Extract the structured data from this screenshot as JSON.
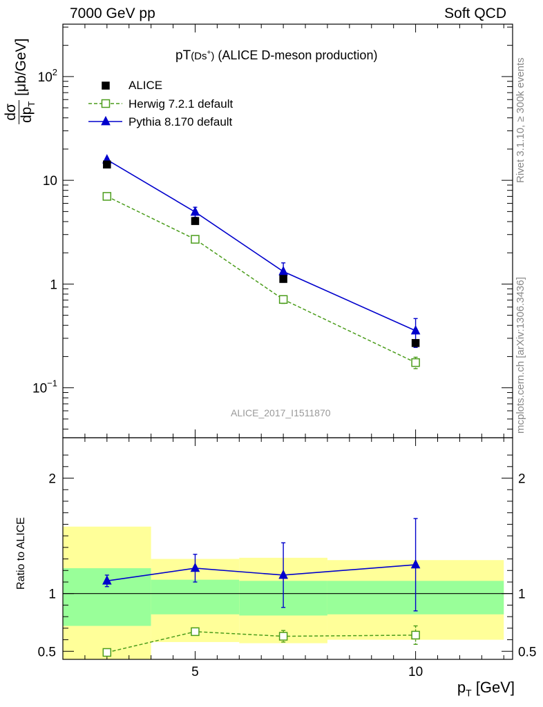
{
  "header": {
    "energy": "7000 GeV pp",
    "process": "Soft QCD"
  },
  "side_text": {
    "rivet": "Rivet 3.1.10, ≥ 300k events",
    "mcplots": "mcplots.cern.ch [arXiv:1306.3436]"
  },
  "plot_title": {
    "main": "pT",
    "species": "(Ds",
    "charge": "+",
    "close": ")",
    "rest": " (ALICE D-meson production)"
  },
  "analysis_id": "ALICE_2017_I1511870",
  "ylabel_top": {
    "num": "dσ",
    "den": "dp",
    "sub": "T",
    "unit": "[μb/GeV]"
  },
  "ylabel_ratio": "Ratio to ALICE",
  "xlabel": {
    "main": "p",
    "sub": "T",
    "unit": "[GeV]"
  },
  "legend": [
    {
      "name": "ALICE",
      "color": "#000000",
      "marker": "square-filled"
    },
    {
      "name": "Herwig 7.2.1 default",
      "color": "#4a9c1a",
      "marker": "square-open",
      "dashed": true
    },
    {
      "name": "Pythia 8.170 default",
      "color": "#0000cc",
      "marker": "triangle"
    }
  ],
  "colors": {
    "band_inner": "#99ff99",
    "band_outer": "#ffff99",
    "herwig": "#4a9c1a",
    "pythia": "#0000cc",
    "data": "#000000"
  },
  "chart_data": [
    {
      "type": "scatter",
      "panel": "main",
      "yscale": "log",
      "xlim": [
        2,
        12.2
      ],
      "ylim": [
        0.033,
        320
      ],
      "yticks": [
        {
          "v": 0.1,
          "label": "10",
          "exp": "−1"
        },
        {
          "v": 1,
          "label": "1",
          "exp": ""
        },
        {
          "v": 10,
          "label": "10",
          "exp": ""
        },
        {
          "v": 100,
          "label": "10",
          "exp": "2"
        }
      ],
      "series": [
        {
          "name": "ALICE",
          "x": [
            3,
            5,
            7,
            10
          ],
          "y": [
            14.2,
            4.05,
            1.12,
            0.27
          ],
          "yerr": [
            0.6,
            0.2,
            0.08,
            0.02
          ]
        },
        {
          "name": "Herwig 7.2.1 default",
          "x": [
            3,
            5,
            7,
            10
          ],
          "y": [
            7.0,
            2.7,
            0.71,
            0.175
          ],
          "yerr": [
            0.25,
            0.12,
            0.06,
            0.022
          ]
        },
        {
          "name": "Pythia 8.170 default",
          "x": [
            3,
            5,
            7,
            10
          ],
          "y": [
            15.8,
            4.95,
            1.32,
            0.355
          ],
          "yerr": [
            0.5,
            0.55,
            0.28,
            0.11
          ]
        }
      ]
    },
    {
      "type": "scatter",
      "panel": "ratio",
      "xlim": [
        2,
        12.2
      ],
      "ylim": [
        0.43,
        2.35
      ],
      "xticks": [
        5,
        10
      ],
      "yticks": [
        0.5,
        1,
        2
      ],
      "bands": [
        {
          "x0": 2,
          "x1": 4,
          "inner": [
            0.72,
            1.22
          ],
          "outer": [
            0.43,
            1.58
          ]
        },
        {
          "x0": 4,
          "x1": 6,
          "inner": [
            0.82,
            1.12
          ],
          "outer": [
            0.58,
            1.3
          ]
        },
        {
          "x0": 6,
          "x1": 8,
          "inner": [
            0.81,
            1.11
          ],
          "outer": [
            0.57,
            1.31
          ]
        },
        {
          "x0": 8,
          "x1": 12,
          "inner": [
            0.82,
            1.11
          ],
          "outer": [
            0.6,
            1.29
          ]
        }
      ],
      "series": [
        {
          "name": "Herwig 7.2.1 default",
          "x": [
            3,
            5,
            7,
            10
          ],
          "y": [
            0.49,
            0.67,
            0.63,
            0.64
          ],
          "yerr": [
            0.0,
            0.03,
            0.05,
            0.08
          ]
        },
        {
          "name": "Pythia 8.170 default",
          "x": [
            3,
            5,
            7,
            10
          ],
          "y": [
            1.11,
            1.22,
            1.16,
            1.25
          ],
          "yerr": [
            0.05,
            0.12,
            0.28,
            0.4
          ]
        }
      ]
    }
  ]
}
